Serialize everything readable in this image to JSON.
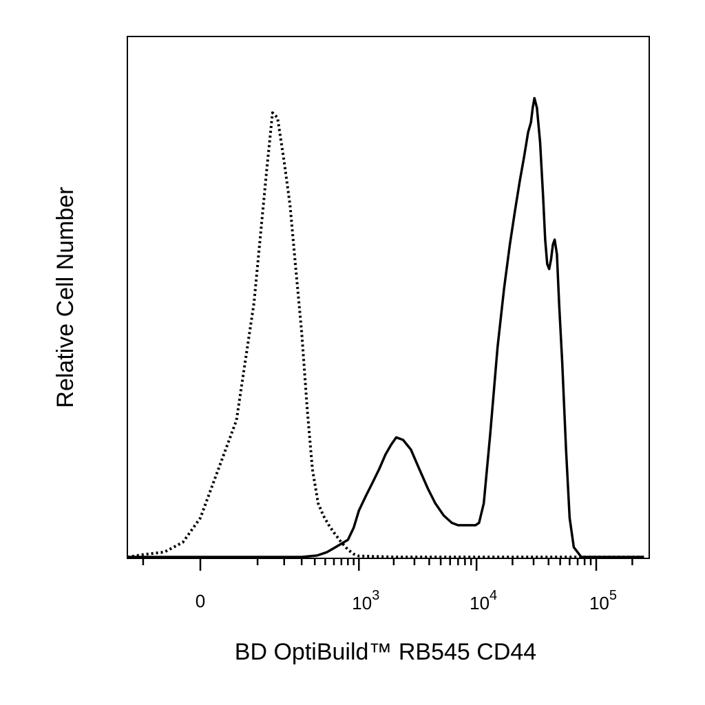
{
  "chart_data": {
    "type": "line",
    "title": "",
    "xlabel": "BD OptiBuild™ RB545 CD44",
    "ylabel": "Relative Cell Number",
    "x_scale": "biexponential",
    "x_ticks": [
      {
        "value": 0,
        "label": "0",
        "exponent": ""
      },
      {
        "value": 1000,
        "label": "10",
        "exponent": "3"
      },
      {
        "value": 10000,
        "label": "10",
        "exponent": "4"
      },
      {
        "value": 100000,
        "label": "10",
        "exponent": "5"
      }
    ],
    "xlim": [
      -400,
      250000
    ],
    "ylim": [
      0,
      100
    ],
    "grid": false,
    "legend": "none",
    "series": [
      {
        "style": "dotted",
        "color": "#000000",
        "x": [
          -400,
          -250,
          -150,
          -100,
          -50,
          -20,
          0,
          50,
          90,
          130,
          150,
          170,
          200,
          230,
          260,
          300,
          340,
          380,
          430,
          480,
          540,
          600,
          700,
          800,
          900,
          1000,
          2000,
          100000,
          250000
        ],
        "y": [
          0,
          0,
          0,
          0.5,
          1,
          3,
          8,
          28,
          52,
          80,
          91,
          90,
          81,
          72,
          60,
          46,
          30,
          18,
          11,
          8.5,
          6.5,
          5,
          3,
          1.5,
          0.6,
          0.2,
          0,
          0,
          0
        ]
      },
      {
        "style": "solid",
        "color": "#000000",
        "x": [
          -400,
          0,
          300,
          420,
          520,
          620,
          800,
          900,
          1000,
          1150,
          1300,
          1500,
          1700,
          1900,
          2100,
          2400,
          2800,
          3300,
          3900,
          4500,
          5300,
          6200,
          7000,
          8000,
          9000,
          9800,
          10500,
          11500,
          13000,
          15000,
          17000,
          19000,
          21000,
          23000,
          25000,
          27000,
          28500,
          29500,
          30500,
          32000,
          34000,
          36000,
          37500,
          39000,
          40500,
          42000,
          43500,
          45000,
          47000,
          49000,
          52000,
          56000,
          60000,
          65000,
          75000,
          90000,
          120000,
          250000
        ],
        "y": [
          0,
          0,
          0,
          0.3,
          1,
          2,
          3.5,
          6,
          9.5,
          12.5,
          15,
          18,
          21,
          23,
          24.5,
          24,
          22,
          18,
          14,
          11,
          8.5,
          7,
          6.5,
          6.5,
          6.5,
          6.5,
          7,
          11,
          25,
          43,
          55,
          64,
          71,
          77,
          82,
          87,
          89,
          92,
          94,
          92,
          85,
          74,
          65,
          60,
          59,
          61,
          64,
          65,
          62,
          52,
          40,
          22,
          8,
          2,
          0,
          0,
          0,
          0
        ]
      }
    ]
  }
}
